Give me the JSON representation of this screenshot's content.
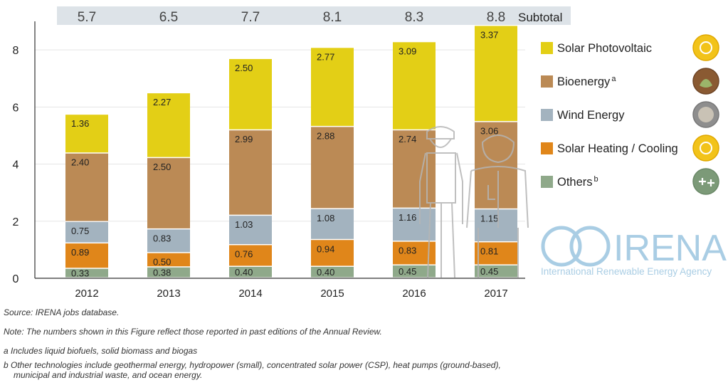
{
  "chart_data": {
    "type": "bar",
    "stacked": true,
    "title": "",
    "xlabel": "",
    "ylabel": "",
    "ylim": [
      0,
      9
    ],
    "yticks": [
      0,
      2,
      4,
      6,
      8
    ],
    "grid": true,
    "legend_position": "right",
    "categories": [
      "2012",
      "2013",
      "2014",
      "2015",
      "2016",
      "2017"
    ],
    "series": [
      {
        "name": "Others",
        "sup": "b",
        "color": "#8fa98a",
        "values": [
          0.33,
          0.38,
          0.4,
          0.4,
          0.45,
          0.45
        ],
        "labels": [
          "0.33",
          "0.38",
          "0.40",
          "0.40",
          "0.45",
          "0.45"
        ]
      },
      {
        "name": "Solar Heating / Cooling",
        "sup": "",
        "color": "#e0861a",
        "values": [
          0.89,
          0.5,
          0.76,
          0.94,
          0.83,
          0.81
        ],
        "labels": [
          "0.89",
          "0.50",
          "0.76",
          "0.94",
          "0.83",
          "0.81"
        ]
      },
      {
        "name": "Wind Energy",
        "sup": "",
        "color": "#a3b3bf",
        "values": [
          0.75,
          0.83,
          1.03,
          1.08,
          1.16,
          1.15
        ],
        "labels": [
          "0.75",
          "0.83",
          "1.03",
          "1.08",
          "1.16",
          "1.15"
        ]
      },
      {
        "name": "Bioenergy",
        "sup": "a",
        "color": "#bb8a55",
        "values": [
          2.4,
          2.5,
          2.99,
          2.88,
          2.74,
          3.06
        ],
        "labels": [
          "2.40",
          "2.50",
          "2.99",
          "2.88",
          "2.74",
          "3.06"
        ]
      },
      {
        "name": "Solar Photovoltaic",
        "sup": "",
        "color": "#e3cf16",
        "values": [
          1.36,
          2.27,
          2.5,
          2.77,
          3.09,
          3.37
        ],
        "labels": [
          "1.36",
          "2.27",
          "2.50",
          "2.77",
          "3.09",
          "3.37"
        ]
      }
    ],
    "subtotal_label": "Subtotal",
    "subtotals": [
      "5.7",
      "6.5",
      "7.7",
      "8.1",
      "8.3",
      "8.8"
    ],
    "legend_order": [
      "Solar Photovoltaic",
      "Bioenergy",
      "Wind Energy",
      "Solar Heating / Cooling",
      "Others"
    ],
    "legend_icons": [
      "sun-badge-icon",
      "leaf-badge-icon",
      "wind-badge-icon",
      "sun-badge-icon",
      "plus-badge-icon"
    ]
  },
  "logo": {
    "name": "IRENA",
    "tagline": "International Renewable Energy Agency"
  },
  "notes": {
    "source": "Source: IRENA jobs database.",
    "note": "Note: The numbers shown in this Figure reflect those reported in past editions of the Annual Review.",
    "a": "a  Includes liquid biofuels, solid biomass and biogas",
    "b1": "b  Other technologies include geothermal energy, hydropower (small), concentrated solar power (CSP), heat pumps (ground-based),",
    "b2": "municipal and industrial waste, and ocean energy."
  },
  "colors": {
    "subtotal_band": "#dde3e8",
    "grid": "#e5e5e5",
    "axis": "#333333",
    "irena": "#a9cde4"
  }
}
